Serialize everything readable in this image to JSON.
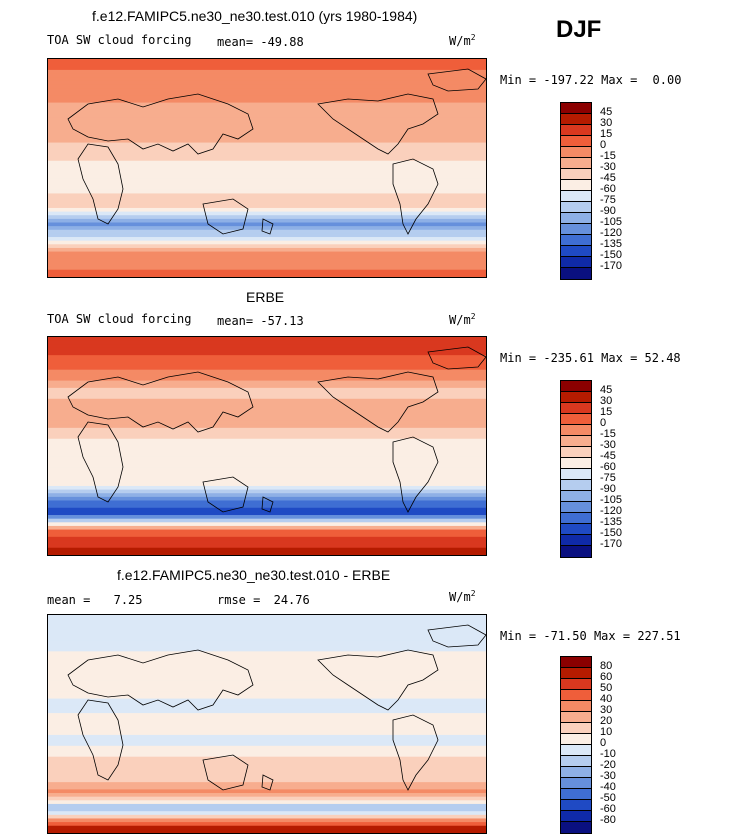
{
  "season": "DJF",
  "panels": [
    {
      "title": "f.e12.FAMIPC5.ne30_ne30.test.010 (yrs 1980-1984)",
      "variable": "TOA SW cloud forcing",
      "mean_label": "mean=",
      "mean_value": "-49.88",
      "units": "W/m",
      "units_exp": "2",
      "min_label": "Min =",
      "min_value": "-197.22",
      "max_label": "Max =",
      "max_value": "0.00",
      "colorbar": {
        "colors": [
          "#8b0000",
          "#b51b00",
          "#d9381f",
          "#ef5e3a",
          "#f48a65",
          "#f7ad8e",
          "#fad0bc",
          "#fbeee4",
          "#dbe8f7",
          "#b5cdef",
          "#8eb0e6",
          "#6690dc",
          "#3f6ed3",
          "#1f4ac4",
          "#0f2aa8",
          "#0a1080"
        ],
        "labels": [
          "45",
          "30",
          "15",
          "0",
          "-15",
          "-30",
          "-45",
          "-60",
          "-75",
          "-90",
          "-105",
          "-120",
          "-135",
          "-150",
          "-170"
        ]
      }
    },
    {
      "title": "ERBE",
      "variable": "TOA SW cloud forcing",
      "mean_label": "mean=",
      "mean_value": "-57.13",
      "units": "W/m",
      "units_exp": "2",
      "min_label": "Min =",
      "min_value": "-235.61",
      "max_label": "Max =",
      "max_value": "52.48",
      "colorbar": {
        "colors": [
          "#8b0000",
          "#b51b00",
          "#d9381f",
          "#ef5e3a",
          "#f48a65",
          "#f7ad8e",
          "#fad0bc",
          "#fbeee4",
          "#dbe8f7",
          "#b5cdef",
          "#8eb0e6",
          "#6690dc",
          "#3f6ed3",
          "#1f4ac4",
          "#0f2aa8",
          "#0a1080"
        ],
        "labels": [
          "45",
          "30",
          "15",
          "0",
          "-15",
          "-30",
          "-45",
          "-60",
          "-75",
          "-90",
          "-105",
          "-120",
          "-135",
          "-150",
          "-170"
        ]
      }
    },
    {
      "title": "f.e12.FAMIPC5.ne30_ne30.test.010 - ERBE",
      "mean_label": "mean =",
      "mean_value": "7.25",
      "rmse_label": "rmse =",
      "rmse_value": "24.76",
      "units": "W/m",
      "units_exp": "2",
      "min_label": "Min =",
      "min_value": "-71.50",
      "max_label": "Max =",
      "max_value": "227.51",
      "colorbar": {
        "colors": [
          "#8b0000",
          "#b51b00",
          "#d9381f",
          "#ef5e3a",
          "#f48a65",
          "#f7ad8e",
          "#fad0bc",
          "#fbeee4",
          "#dbe8f7",
          "#b5cdef",
          "#8eb0e6",
          "#6690dc",
          "#3f6ed3",
          "#1f4ac4",
          "#0f2aa8",
          "#0a1080"
        ],
        "labels": [
          "80",
          "60",
          "50",
          "40",
          "30",
          "20",
          "10",
          "0",
          "-10",
          "-20",
          "-30",
          "-40",
          "-50",
          "-60",
          "-80"
        ]
      }
    }
  ],
  "chart_data": [
    {
      "type": "heatmap",
      "title": "f.e12.FAMIPC5.ne30_ne30.test.010 (yrs 1980-1984)",
      "subtitle": "TOA SW cloud forcing",
      "mean": -49.88,
      "min": -197.22,
      "max": 0.0,
      "units": "W/m2",
      "legend_levels": [
        45,
        30,
        15,
        0,
        -15,
        -30,
        -45,
        -60,
        -75,
        -90,
        -105,
        -120,
        -135,
        -150,
        -170
      ],
      "projection": "global cylindrical equidistant, Pacific-centred",
      "zonal_profile": {
        "lat": [
          80,
          60,
          45,
          30,
          15,
          0,
          -15,
          -30,
          -45,
          -55,
          -70,
          -85
        ],
        "value": [
          0,
          -5,
          -30,
          -20,
          -35,
          -55,
          -55,
          -35,
          -110,
          -80,
          -5,
          0
        ]
      }
    },
    {
      "type": "heatmap",
      "title": "ERBE",
      "subtitle": "TOA SW cloud forcing",
      "mean": -57.13,
      "min": -235.61,
      "max": 52.48,
      "units": "W/m2",
      "legend_levels": [
        45,
        30,
        15,
        0,
        -15,
        -30,
        -45,
        -60,
        -75,
        -90,
        -105,
        -120,
        -135,
        -150,
        -170
      ],
      "projection": "global cylindrical equidistant, Pacific-centred",
      "zonal_profile": {
        "lat": [
          80,
          60,
          45,
          30,
          15,
          0,
          -15,
          -30,
          -45,
          -55,
          -70,
          -85
        ],
        "value": [
          20,
          -5,
          -35,
          -20,
          -30,
          -55,
          -50,
          -45,
          -120,
          -150,
          10,
          30
        ]
      }
    },
    {
      "type": "heatmap",
      "title": "f.e12.FAMIPC5.ne30_ne30.test.010 - ERBE",
      "mean": 7.25,
      "rmse": 24.76,
      "min": -71.5,
      "max": 227.51,
      "units": "W/m2",
      "legend_levels": [
        80,
        60,
        50,
        40,
        30,
        20,
        10,
        0,
        -10,
        -20,
        -30,
        -40,
        -50,
        -60,
        -80
      ],
      "projection": "global cylindrical equidistant, Pacific-centred",
      "zonal_profile": {
        "lat": [
          80,
          60,
          45,
          30,
          15,
          0,
          -15,
          -30,
          -45,
          -55,
          -70,
          -85
        ],
        "value": [
          -5,
          0,
          5,
          5,
          -5,
          5,
          -5,
          15,
          10,
          35,
          -20,
          60
        ]
      }
    }
  ]
}
